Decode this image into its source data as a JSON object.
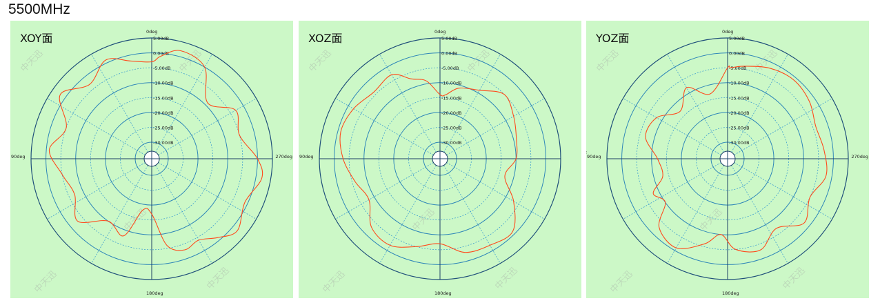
{
  "title": "5500MHz",
  "colors": {
    "panel_bg": "#ccf8c7",
    "outer_ring": "#1f4f7a",
    "ring": "#2e86b8",
    "dashed": "#3f9fcf",
    "axis": "#1b3f66",
    "trace": "#ff4a1c"
  },
  "chart_data": [
    {
      "type": "polar-line",
      "title": "XOY面",
      "angle_labels": {
        "top": "0deg",
        "left": "90deg",
        "right": "270deg",
        "bottom": "180deg"
      },
      "ring_labels": [
        "5.00dB",
        "0.00dB",
        "-5.00dB",
        "-10.00dB",
        "-15.00dB",
        "-20.00dB",
        "-25.00dB",
        "-30.00dB"
      ],
      "r_range": [
        -33,
        5
      ],
      "grid": true,
      "series": [
        {
          "angles": [
            0,
            12,
            25,
            40,
            55,
            70,
            85,
            100,
            115,
            130,
            145,
            160,
            170,
            180,
            190,
            200,
            210,
            220,
            230,
            245,
            260,
            270,
            285,
            300,
            315,
            330,
            345,
            355
          ],
          "values": [
            -3,
            -2,
            1,
            -3,
            2,
            -5,
            -1,
            -5,
            -7,
            -3,
            -10,
            -8,
            -18,
            -17,
            -6,
            -3,
            -4,
            -1,
            2,
            -1,
            2,
            0,
            -5,
            -3,
            -9,
            0,
            2,
            -1
          ]
        }
      ]
    },
    {
      "type": "polar-line",
      "title": "XOZ面",
      "angle_labels": {
        "top": "0deg",
        "left": "90deg",
        "right": "",
        "bottom": "180deg"
      },
      "ring_labels": [
        "5.00dB",
        "0.00dB",
        "-5.00dB",
        "-10.00dB",
        "-15.00dB",
        "-20.00dB",
        "-25.00dB",
        "-30.00dB"
      ],
      "r_range": [
        -33,
        5
      ],
      "grid": true,
      "series": [
        {
          "angles": [
            0,
            10,
            20,
            30,
            45,
            60,
            75,
            90,
            105,
            120,
            135,
            150,
            165,
            180,
            195,
            210,
            225,
            240,
            255,
            270,
            285,
            300,
            315,
            330,
            345,
            355
          ],
          "values": [
            -14,
            -9,
            -7,
            -3,
            -4,
            -2,
            -1,
            -3,
            -6,
            -8,
            -3,
            -2,
            -5,
            -7,
            -3,
            -2,
            -1,
            -7,
            -13,
            -10,
            -9,
            -7,
            -5,
            -9,
            -11,
            -14
          ]
        }
      ]
    },
    {
      "type": "polar-line",
      "title": "YOZ面",
      "angle_labels": {
        "top": "0deg",
        "left": "90deg",
        "right": "270deg",
        "bottom": "180deg"
      },
      "ring_labels": [
        "5.00dB",
        "0.00dB",
        "-5.00dB",
        "-10.00dB",
        "-15.00dB",
        "-20.00dB",
        "-25.00dB",
        "-30.00dB"
      ],
      "r_range": [
        -33,
        5
      ],
      "grid": true,
      "series": [
        {
          "angles": [
            0,
            15,
            30,
            45,
            60,
            75,
            90,
            105,
            115,
            125,
            135,
            150,
            165,
            175,
            185,
            200,
            215,
            230,
            245,
            260,
            275,
            290,
            305,
            320,
            335,
            350,
            358
          ],
          "values": [
            -5,
            -13,
            -8,
            -13,
            -8,
            -7,
            -12,
            -13,
            -8,
            -10,
            -3,
            -1,
            -6,
            -10,
            -5,
            -3,
            -7,
            -2,
            -5,
            -2,
            -3,
            -4,
            -2,
            -1,
            -2,
            -4,
            -5
          ]
        }
      ]
    }
  ],
  "side_labels": {
    "left_of_third": "2"
  },
  "watermark": "中天迅"
}
